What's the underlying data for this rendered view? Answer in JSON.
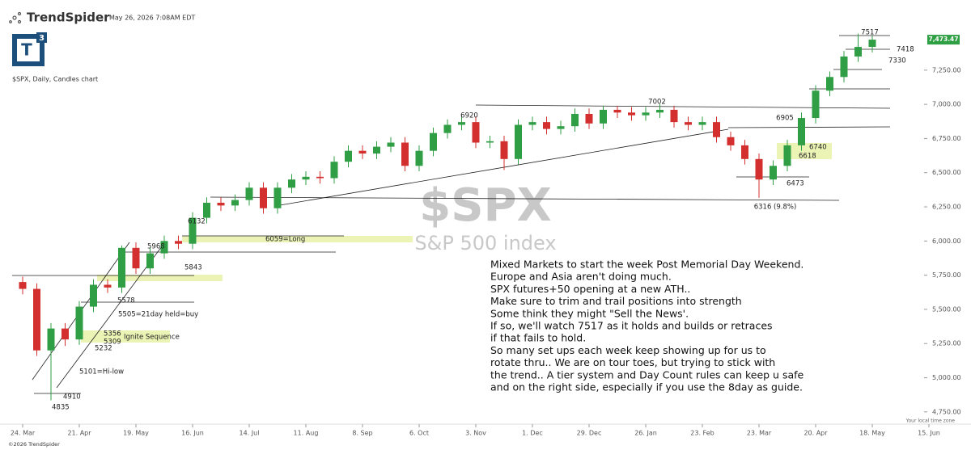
{
  "app": {
    "brand": "TrendSpider",
    "timestamp": "May 26, 2026 7:08AM EDT",
    "logo_letter": "T",
    "logo_badge": "3",
    "chart_caption": "$SPX, Daily, Candles chart",
    "watermark_symbol": "$SPX",
    "watermark_name": "S&P 500 index",
    "timezone_note": "Your local time zone",
    "copyright": "©2026 TrendSpider"
  },
  "chart_data": {
    "type": "candlestick",
    "x": [
      "24. Mar",
      "31. Mar",
      "7. Apr",
      "14. Apr",
      "21. Apr",
      "28. Apr",
      "5. May",
      "12. May",
      "19. May",
      "26. May",
      "2. Jun",
      "9. Jun",
      "16. Jun",
      "23. Jun",
      "30. Jun",
      "7. Jul",
      "14. Jul",
      "21. Jul",
      "28. Jul",
      "4. Aug",
      "11. Aug",
      "18. Aug",
      "25. Aug",
      "1. Sep",
      "8. Sep",
      "15. Sep",
      "22. Sep",
      "29. Sep",
      "6. Oct",
      "13. Oct",
      "20. Oct",
      "27. Oct",
      "3. Nov",
      "10. Nov",
      "17. Nov",
      "24. Nov",
      "1. Dec",
      "8. Dec",
      "15. Dec",
      "22. Dec",
      "29. Dec",
      "5. Jan",
      "12. Jan",
      "19. Jan",
      "26. Jan",
      "2. Feb",
      "9. Feb",
      "16. Feb",
      "23. Feb",
      "2. Mar",
      "9. Mar",
      "16. Mar",
      "23. Mar",
      "30. Mar",
      "6. Apr",
      "13. Apr",
      "20. Apr",
      "27. Apr",
      "4. May",
      "11. May",
      "18. May"
    ],
    "open": [
      5700,
      5650,
      5200,
      5360,
      5280,
      5520,
      5680,
      5660,
      5950,
      5800,
      5910,
      6000,
      5980,
      6170,
      6280,
      6260,
      6300,
      6390,
      6240,
      6390,
      6450,
      6470,
      6460,
      6580,
      6660,
      6640,
      6690,
      6720,
      6550,
      6660,
      6790,
      6850,
      6870,
      6720,
      6730,
      6600,
      6850,
      6870,
      6820,
      6840,
      6930,
      6860,
      6960,
      6940,
      6920,
      6940,
      6960,
      6870,
      6850,
      6870,
      6760,
      6700,
      6600,
      6450,
      6550,
      6700,
      6900,
      7100,
      7200,
      7350,
      7420
    ],
    "high": [
      5740,
      5690,
      5400,
      5400,
      5560,
      5720,
      5720,
      5968,
      5990,
      5950,
      6040,
      6040,
      6210,
      6320,
      6320,
      6340,
      6430,
      6430,
      6430,
      6490,
      6510,
      6510,
      6620,
      6700,
      6700,
      6730,
      6760,
      6760,
      6700,
      6830,
      6890,
      6920,
      6910,
      6770,
      6770,
      6890,
      6910,
      6910,
      6880,
      6970,
      6970,
      6990,
      6990,
      6980,
      6980,
      7002,
      6990,
      6910,
      6910,
      6910,
      6800,
      6740,
      6640,
      6590,
      6740,
      6940,
      7140,
      7240,
      7390,
      7517,
      7500
    ],
    "low": [
      5610,
      5160,
      4835,
      5232,
      5240,
      5480,
      5620,
      5620,
      5760,
      5760,
      5870,
      5940,
      5940,
      6130,
      6220,
      6220,
      6260,
      6200,
      6200,
      6350,
      6410,
      6420,
      6420,
      6540,
      6600,
      6600,
      6650,
      6510,
      6510,
      6620,
      6750,
      6810,
      6680,
      6680,
      6520,
      6560,
      6810,
      6780,
      6780,
      6800,
      6820,
      6820,
      6900,
      6880,
      6880,
      6900,
      6830,
      6810,
      6810,
      6720,
      6660,
      6560,
      6316,
      6410,
      6510,
      6660,
      6860,
      7060,
      7160,
      7310,
      7380
    ],
    "close": [
      5650,
      5200,
      5360,
      5280,
      5520,
      5680,
      5660,
      5950,
      5800,
      5910,
      6000,
      5980,
      6170,
      6280,
      6260,
      6300,
      6390,
      6240,
      6390,
      6450,
      6470,
      6460,
      6580,
      6660,
      6640,
      6690,
      6720,
      6550,
      6660,
      6790,
      6850,
      6870,
      6720,
      6730,
      6600,
      6850,
      6870,
      6820,
      6840,
      6930,
      6860,
      6960,
      6940,
      6920,
      6940,
      6960,
      6870,
      6850,
      6870,
      6760,
      6700,
      6600,
      6450,
      6550,
      6700,
      6900,
      7100,
      7200,
      7350,
      7420,
      7473
    ],
    "up_color": "#2f9e44",
    "down_color": "#d32f2f",
    "last_price_label": "7,473.47",
    "last_price_color": "#2ea043",
    "ylim": [
      4690,
      7645
    ],
    "yticks": [
      {
        "value": 4750,
        "label": "4,750.00"
      },
      {
        "value": 5000,
        "label": "5,000.00"
      },
      {
        "value": 5250,
        "label": "5,250.00"
      },
      {
        "value": 5500,
        "label": "5,500.00"
      },
      {
        "value": 5750,
        "label": "5,750.00"
      },
      {
        "value": 6000,
        "label": "6,000.00"
      },
      {
        "value": 6250,
        "label": "6,250.00"
      },
      {
        "value": 6500,
        "label": "6,500.00"
      },
      {
        "value": 6750,
        "label": "6,750.00"
      },
      {
        "value": 7000,
        "label": "7,000.00"
      },
      {
        "value": 7250,
        "label": "7,250.00"
      }
    ],
    "xticks": [
      "24. Mar",
      "21. Apr",
      "19. May",
      "16. Jun",
      "14. Jul",
      "11. Aug",
      "8. Sep",
      "6. Oct",
      "3. Nov",
      "1. Dec",
      "29. Dec",
      "26. Jan",
      "23. Feb",
      "23. Mar",
      "20. Apr",
      "18. May",
      "15. Jun"
    ],
    "grid": false,
    "annotations": [
      "7517",
      "7418",
      "7330",
      "7002",
      "6920",
      "6905",
      "6740",
      "6618",
      "6473",
      "6316 (9.8%)",
      "6132",
      "6059=Long",
      "5968",
      "5843",
      "5578",
      "5505=21day held=buy",
      "5356",
      "5309",
      "5232",
      "5101=Hi-low",
      "4910",
      "4835",
      "Ignite Sequence"
    ],
    "commentary": [
      "Mixed Markets to start the week Post Memorial Day Weekend.",
      "Europe and Asia aren't doing much.",
      "SPX futures+50 opening at a new ATH..",
      "Make sure to trim and trail positions into strength",
      "Some think they might \"Sell the News'.",
      "If so, we'll watch 7517 as it holds and builds or retraces",
      "if that fails to hold.",
      "So many set ups each week keep showing up for us to",
      "rotate thru.. We are on tour toes, but trying to stick with",
      "the trend.. A tier system and Day Count rules can keep u safe",
      "and on the right side, especially if you use the 8day as guide."
    ]
  }
}
